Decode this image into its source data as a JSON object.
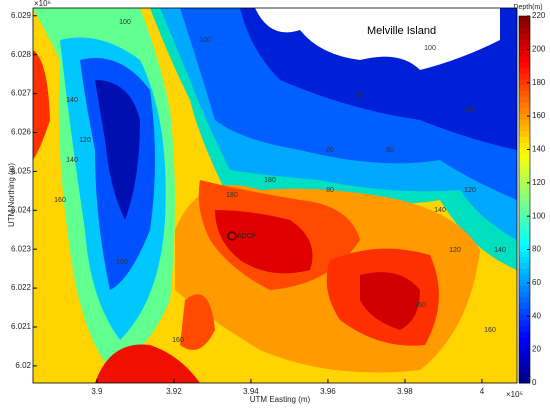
{
  "chart_data": {
    "type": "contour",
    "x_label": "UTM Easting (m)",
    "y_label": "UTM Northing (m)",
    "x_multiplier": "×10⁵",
    "y_multiplier": "×10⁶",
    "xlim": [
      3.8834,
      4.0091
    ],
    "xticks": [
      3.9,
      3.92,
      3.94,
      3.96,
      3.98,
      4
    ],
    "ylim": [
      6.01956,
      6.0292
    ],
    "yticks": [
      6.02,
      6.021,
      6.022,
      6.023,
      6.024,
      6.025,
      6.026,
      6.027,
      6.028,
      6.029
    ],
    "colorbar_label": "Depth(m)",
    "colormap": "jet",
    "clim": [
      0,
      220
    ],
    "cticks": [
      0,
      20,
      40,
      60,
      80,
      100,
      120,
      140,
      160,
      180,
      200,
      220
    ],
    "annotations": [
      "Melville Island",
      "ADCP"
    ],
    "contour_labels": [
      100,
      140,
      120,
      160,
      180,
      100,
      80,
      140,
      160,
      180,
      160,
      140,
      120,
      100,
      60,
      80,
      100,
      120,
      140,
      160,
      100,
      80
    ]
  }
}
